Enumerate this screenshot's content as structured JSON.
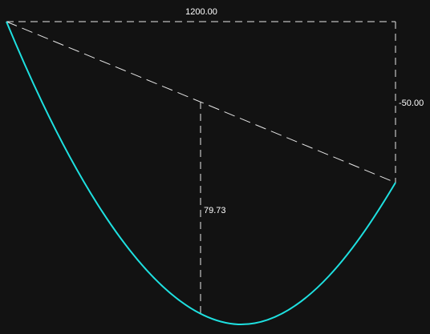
{
  "diagram": {
    "span_label": "1200.00",
    "support_offset_label": "-50.00",
    "sag_label": "79.73",
    "colors": {
      "background": "#121212",
      "curve": "#1ee0e0",
      "dimension_lines": "#e6e6e6",
      "text": "#ffffff"
    }
  }
}
